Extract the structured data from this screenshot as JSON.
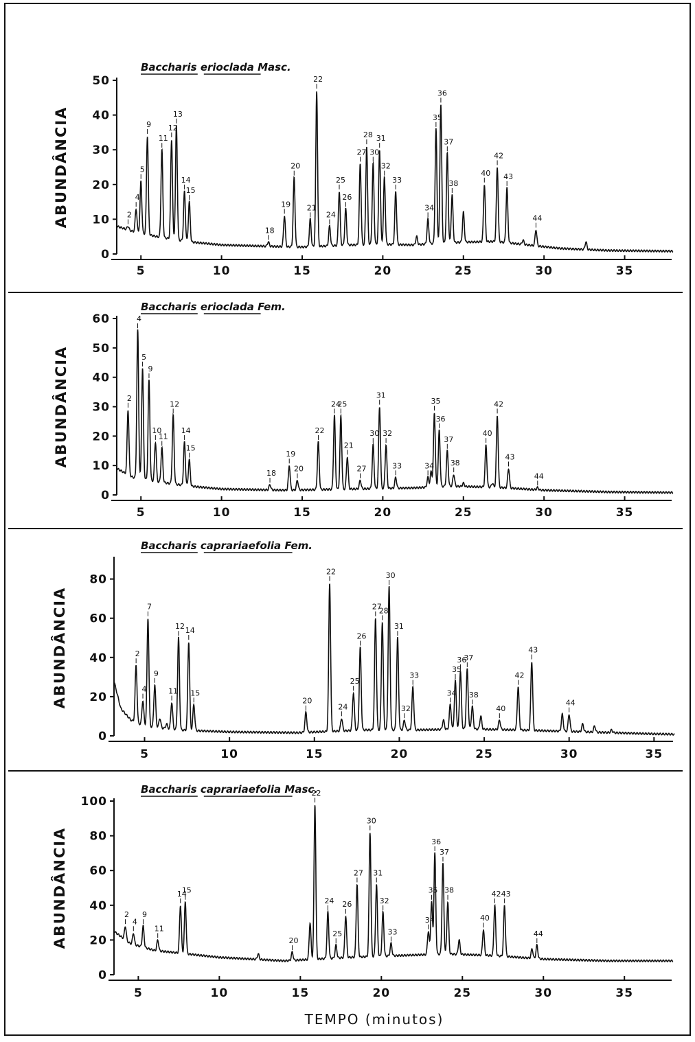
{
  "figure": {
    "xlabel": "TEMPO (minutos)"
  },
  "chart_data": [
    {
      "type": "line",
      "title": "Baccharis erioclada Masc.",
      "ylabel": "ABUNDÂNCIA",
      "xlabel": "",
      "xlim": [
        3.5,
        38
      ],
      "ylim": [
        0,
        50
      ],
      "xticks": [
        5,
        10,
        15,
        20,
        25,
        30,
        35
      ],
      "yticks": [
        0,
        10,
        20,
        30,
        40,
        50
      ],
      "baseline": [
        [
          3.5,
          8
        ],
        [
          4.5,
          6.5
        ],
        [
          6,
          5
        ],
        [
          8,
          3.5
        ],
        [
          10,
          2.6
        ],
        [
          13,
          2.2
        ],
        [
          15,
          2
        ],
        [
          18,
          2.6
        ],
        [
          20,
          2.8
        ],
        [
          22,
          2.6
        ],
        [
          23,
          3
        ],
        [
          25,
          3.4
        ],
        [
          27,
          3.6
        ],
        [
          29,
          2.6
        ],
        [
          31,
          1.6
        ],
        [
          34,
          1
        ],
        [
          38,
          0.8
        ]
      ],
      "peaks": [
        {
          "label": "2",
          "x": 4.2,
          "y": 8
        },
        {
          "label": "4",
          "x": 4.7,
          "y": 13
        },
        {
          "label": "5",
          "x": 5.0,
          "y": 21
        },
        {
          "label": "9",
          "x": 5.4,
          "y": 34
        },
        {
          "label": "11",
          "x": 6.3,
          "y": 30
        },
        {
          "label": "12",
          "x": 6.9,
          "y": 33
        },
        {
          "label": "13",
          "x": 7.2,
          "y": 37
        },
        {
          "label": "14",
          "x": 7.7,
          "y": 18
        },
        {
          "label": "15",
          "x": 8.0,
          "y": 15
        },
        {
          "label": "18",
          "x": 12.9,
          "y": 3.5
        },
        {
          "label": "19",
          "x": 13.9,
          "y": 11
        },
        {
          "label": "20",
          "x": 14.5,
          "y": 22
        },
        {
          "label": "21",
          "x": 15.5,
          "y": 10
        },
        {
          "label": "22",
          "x": 15.9,
          "y": 47
        },
        {
          "label": "24",
          "x": 16.7,
          "y": 8
        },
        {
          "label": "25",
          "x": 17.3,
          "y": 18
        },
        {
          "label": "26",
          "x": 17.7,
          "y": 13
        },
        {
          "label": "27",
          "x": 18.6,
          "y": 26
        },
        {
          "label": "28",
          "x": 19.0,
          "y": 31
        },
        {
          "label": "30",
          "x": 19.4,
          "y": 26
        },
        {
          "label": "31",
          "x": 19.8,
          "y": 30
        },
        {
          "label": "32",
          "x": 20.1,
          "y": 22
        },
        {
          "label": "33",
          "x": 20.8,
          "y": 18
        },
        {
          "label": "34",
          "x": 22.8,
          "y": 10
        },
        {
          "label": "35",
          "x": 23.3,
          "y": 36
        },
        {
          "label": "36",
          "x": 23.6,
          "y": 43
        },
        {
          "label": "37",
          "x": 24.0,
          "y": 29
        },
        {
          "label": "38",
          "x": 24.3,
          "y": 17
        },
        {
          "label": "40",
          "x": 26.3,
          "y": 20
        },
        {
          "label": "42",
          "x": 27.1,
          "y": 25
        },
        {
          "label": "43",
          "x": 27.7,
          "y": 19
        },
        {
          "label": "44",
          "x": 29.5,
          "y": 7
        }
      ],
      "minor_peaks": [
        [
          22.1,
          5
        ],
        [
          25.0,
          12
        ],
        [
          28.7,
          4
        ],
        [
          32.6,
          3.5
        ]
      ]
    },
    {
      "type": "line",
      "title": "Baccharis erioclada Fem.",
      "ylabel": "ABUNDÂNCIA",
      "xlabel": "",
      "xlim": [
        3.5,
        38
      ],
      "ylim": [
        0,
        60
      ],
      "xticks": [
        5,
        10,
        15,
        20,
        25,
        30,
        35
      ],
      "yticks": [
        0,
        10,
        20,
        30,
        40,
        50,
        60
      ],
      "baseline": [
        [
          3.5,
          9
        ],
        [
          4.5,
          6
        ],
        [
          6,
          4.5
        ],
        [
          8,
          3
        ],
        [
          10,
          2
        ],
        [
          14,
          1.6
        ],
        [
          18,
          2
        ],
        [
          22,
          2.4
        ],
        [
          24,
          3
        ],
        [
          27,
          2.6
        ],
        [
          30,
          1.6
        ],
        [
          34,
          1
        ],
        [
          38,
          0.8
        ]
      ],
      "peaks": [
        {
          "label": "2",
          "x": 4.2,
          "y": 29
        },
        {
          "label": "4",
          "x": 4.8,
          "y": 56
        },
        {
          "label": "5",
          "x": 5.1,
          "y": 43
        },
        {
          "label": "9",
          "x": 5.5,
          "y": 39
        },
        {
          "label": "10",
          "x": 5.9,
          "y": 18
        },
        {
          "label": "11",
          "x": 6.3,
          "y": 16
        },
        {
          "label": "12",
          "x": 7.0,
          "y": 27
        },
        {
          "label": "14",
          "x": 7.7,
          "y": 18
        },
        {
          "label": "15",
          "x": 8.0,
          "y": 12
        },
        {
          "label": "18",
          "x": 13.0,
          "y": 3.5
        },
        {
          "label": "19",
          "x": 14.2,
          "y": 10
        },
        {
          "label": "20",
          "x": 14.7,
          "y": 5
        },
        {
          "label": "22",
          "x": 16.0,
          "y": 18
        },
        {
          "label": "24",
          "x": 17.0,
          "y": 27
        },
        {
          "label": "25",
          "x": 17.4,
          "y": 27
        },
        {
          "label": "21",
          "x": 17.8,
          "y": 13
        },
        {
          "label": "27",
          "x": 18.6,
          "y": 5
        },
        {
          "label": "30",
          "x": 19.4,
          "y": 17
        },
        {
          "label": "31",
          "x": 19.8,
          "y": 30
        },
        {
          "label": "32",
          "x": 20.2,
          "y": 17
        },
        {
          "label": "33",
          "x": 20.8,
          "y": 6
        },
        {
          "label": "34",
          "x": 22.8,
          "y": 6
        },
        {
          "label": "35",
          "x": 23.2,
          "y": 28
        },
        {
          "label": "36",
          "x": 23.5,
          "y": 22
        },
        {
          "label": "37",
          "x": 24.0,
          "y": 15
        },
        {
          "label": "38",
          "x": 24.4,
          "y": 7
        },
        {
          "label": "40",
          "x": 26.4,
          "y": 17
        },
        {
          "label": "42",
          "x": 27.1,
          "y": 27
        },
        {
          "label": "43",
          "x": 27.8,
          "y": 9
        },
        {
          "label": "44",
          "x": 29.6,
          "y": 2.5
        }
      ],
      "minor_peaks": [
        [
          23.0,
          8
        ],
        [
          25.0,
          4
        ],
        [
          26.8,
          4
        ]
      ]
    },
    {
      "type": "line",
      "title": "Baccharis caprariaefolia Fem.",
      "ylabel": "ABUNDÂNCIA",
      "xlabel": "",
      "xlim": [
        3.2,
        36.2
      ],
      "ylim": [
        0,
        90
      ],
      "xticks": [
        5,
        10,
        15,
        20,
        25,
        30,
        35
      ],
      "yticks": [
        0,
        20,
        40,
        60,
        80
      ],
      "baseline": [
        [
          3.2,
          28
        ],
        [
          3.6,
          14
        ],
        [
          4.2,
          8
        ],
        [
          5,
          5
        ],
        [
          7,
          3
        ],
        [
          10,
          2
        ],
        [
          14,
          1.6
        ],
        [
          18,
          3
        ],
        [
          21,
          3
        ],
        [
          24,
          3.5
        ],
        [
          27,
          3
        ],
        [
          31,
          2
        ],
        [
          35,
          1
        ],
        [
          36.2,
          0.8
        ]
      ],
      "peaks": [
        {
          "label": "2",
          "x": 4.5,
          "y": 36
        },
        {
          "label": "4",
          "x": 4.9,
          "y": 18
        },
        {
          "label": "7",
          "x": 5.2,
          "y": 60
        },
        {
          "label": "9",
          "x": 5.6,
          "y": 26
        },
        {
          "label": "11",
          "x": 6.6,
          "y": 17
        },
        {
          "label": "12",
          "x": 7.0,
          "y": 50
        },
        {
          "label": "14",
          "x": 7.6,
          "y": 48
        },
        {
          "label": "15",
          "x": 7.9,
          "y": 16
        },
        {
          "label": "20",
          "x": 14.5,
          "y": 12
        },
        {
          "label": "22",
          "x": 15.9,
          "y": 78
        },
        {
          "label": "24",
          "x": 16.6,
          "y": 9
        },
        {
          "label": "25",
          "x": 17.3,
          "y": 22
        },
        {
          "label": "26",
          "x": 17.7,
          "y": 45
        },
        {
          "label": "27",
          "x": 18.6,
          "y": 60
        },
        {
          "label": "28",
          "x": 19.0,
          "y": 58
        },
        {
          "label": "30",
          "x": 19.4,
          "y": 76
        },
        {
          "label": "31",
          "x": 19.9,
          "y": 50
        },
        {
          "label": "32",
          "x": 20.3,
          "y": 8
        },
        {
          "label": "33",
          "x": 20.8,
          "y": 25
        },
        {
          "label": "34",
          "x": 23.0,
          "y": 16
        },
        {
          "label": "35",
          "x": 23.3,
          "y": 28
        },
        {
          "label": "36",
          "x": 23.6,
          "y": 33
        },
        {
          "label": "37",
          "x": 24.0,
          "y": 34
        },
        {
          "label": "38",
          "x": 24.3,
          "y": 15
        },
        {
          "label": "40",
          "x": 25.9,
          "y": 8
        },
        {
          "label": "42",
          "x": 27.0,
          "y": 25
        },
        {
          "label": "43",
          "x": 27.8,
          "y": 38
        },
        {
          "label": "44",
          "x": 30.0,
          "y": 11
        }
      ],
      "minor_peaks": [
        [
          5.9,
          9
        ],
        [
          6.3,
          6
        ],
        [
          22.6,
          8
        ],
        [
          24.8,
          10
        ],
        [
          29.6,
          11
        ],
        [
          30.8,
          6
        ],
        [
          31.5,
          5
        ],
        [
          32.5,
          3
        ]
      ]
    },
    {
      "type": "line",
      "title": "Baccharis caprariaefolia Masc.",
      "ylabel": "ABUNDÂNCIA",
      "xlabel": "TEMPO (minutos)",
      "xlim": [
        3.5,
        38
      ],
      "ylim": [
        0,
        100
      ],
      "xticks": [
        5,
        10,
        15,
        20,
        25,
        30,
        35
      ],
      "yticks": [
        0,
        20,
        40,
        60,
        80,
        100
      ],
      "baseline": [
        [
          3.5,
          25
        ],
        [
          4.5,
          18
        ],
        [
          6,
          14
        ],
        [
          8,
          12
        ],
        [
          10,
          10
        ],
        [
          14,
          8
        ],
        [
          18,
          10
        ],
        [
          21,
          11
        ],
        [
          24,
          12
        ],
        [
          27,
          11
        ],
        [
          30,
          9
        ],
        [
          34,
          8
        ],
        [
          38,
          8
        ]
      ],
      "peaks": [
        {
          "label": "2",
          "x": 4.2,
          "y": 28
        },
        {
          "label": "4",
          "x": 4.7,
          "y": 24
        },
        {
          "label": "9",
          "x": 5.3,
          "y": 28
        },
        {
          "label": "11",
          "x": 6.2,
          "y": 20
        },
        {
          "label": "14",
          "x": 7.6,
          "y": 40
        },
        {
          "label": "15",
          "x": 7.9,
          "y": 42
        },
        {
          "label": "20",
          "x": 14.5,
          "y": 13
        },
        {
          "label": "22",
          "x": 15.9,
          "y": 98
        },
        {
          "label": "24",
          "x": 16.7,
          "y": 36
        },
        {
          "label": "25",
          "x": 17.2,
          "y": 17
        },
        {
          "label": "26",
          "x": 17.8,
          "y": 34
        },
        {
          "label": "27",
          "x": 18.5,
          "y": 52
        },
        {
          "label": "30",
          "x": 19.3,
          "y": 82
        },
        {
          "label": "31",
          "x": 19.7,
          "y": 52
        },
        {
          "label": "32",
          "x": 20.1,
          "y": 36
        },
        {
          "label": "33",
          "x": 20.6,
          "y": 18
        },
        {
          "label": "34",
          "x": 22.9,
          "y": 25
        },
        {
          "label": "35",
          "x": 23.1,
          "y": 42
        },
        {
          "label": "36",
          "x": 23.3,
          "y": 70
        },
        {
          "label": "37",
          "x": 23.8,
          "y": 64
        },
        {
          "label": "38",
          "x": 24.1,
          "y": 42
        },
        {
          "label": "40",
          "x": 26.3,
          "y": 26
        },
        {
          "label": "42",
          "x": 27.0,
          "y": 40
        },
        {
          "label": "43",
          "x": 27.6,
          "y": 40
        },
        {
          "label": "44",
          "x": 29.6,
          "y": 17
        }
      ],
      "minor_peaks": [
        [
          12.4,
          12
        ],
        [
          15.6,
          30
        ],
        [
          24.8,
          20
        ],
        [
          29.3,
          15
        ]
      ]
    }
  ]
}
